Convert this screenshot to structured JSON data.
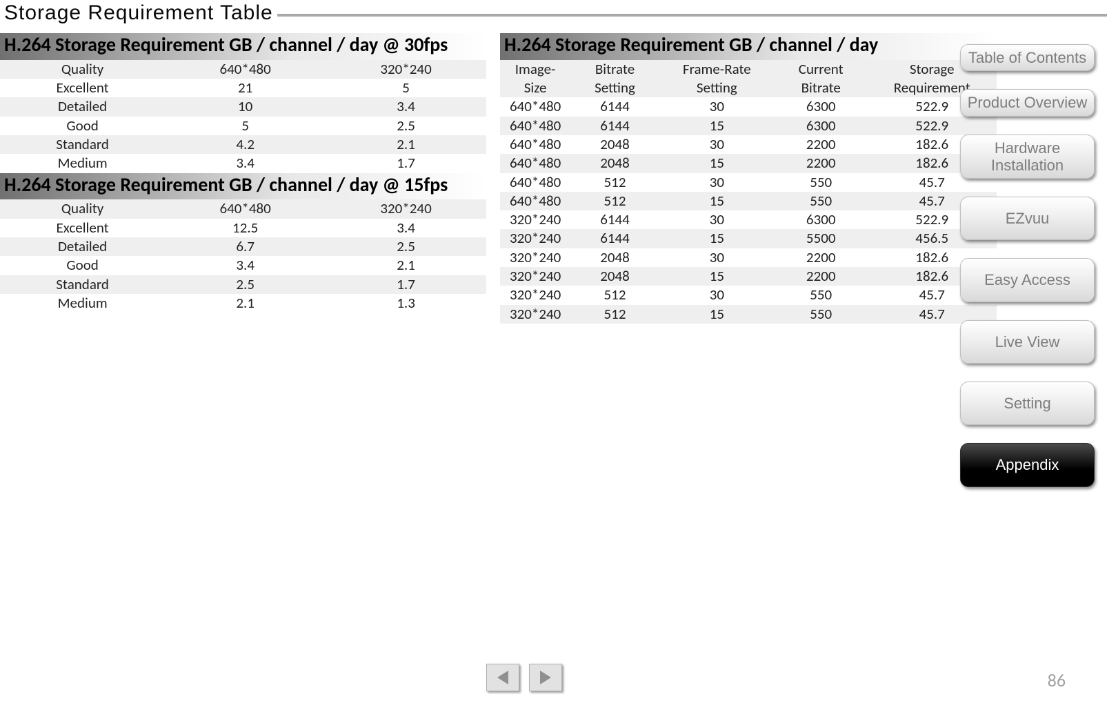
{
  "page_title": "Storage Requirement Table",
  "page_number": "86",
  "nav": [
    {
      "label": "Table of Contents",
      "active": false,
      "lines": 2
    },
    {
      "label": "Product Overview",
      "active": false,
      "lines": 2
    },
    {
      "label": "Hardware Installation",
      "active": false,
      "lines": 2
    },
    {
      "label": "EZvuu",
      "active": false,
      "lines": 1
    },
    {
      "label": "Easy Access",
      "active": false,
      "lines": 1
    },
    {
      "label": "Live View",
      "active": false,
      "lines": 1
    },
    {
      "label": "Setting",
      "active": false,
      "lines": 1
    },
    {
      "label": "Appendix",
      "active": true,
      "lines": 1
    }
  ],
  "table30": {
    "title": "H.264 Storage Requirement GB / channel / day @ 30fps",
    "header": [
      "Quality",
      "640*480",
      "320*240"
    ],
    "rows": [
      [
        "Excellent",
        "21",
        "5"
      ],
      [
        "Detailed",
        "10",
        "3.4"
      ],
      [
        "Good",
        "5",
        "2.5"
      ],
      [
        "Standard",
        "4.2",
        "2.1"
      ],
      [
        "Medium",
        "3.4",
        "1.7"
      ]
    ]
  },
  "table15": {
    "title": "H.264 Storage Requirement GB / channel / day @ 15fps",
    "header": [
      "Quality",
      "640*480",
      "320*240"
    ],
    "rows": [
      [
        "Excellent",
        "12.5",
        "3.4"
      ],
      [
        "Detailed",
        "6.7",
        "2.5"
      ],
      [
        "Good",
        "3.4",
        "2.1"
      ],
      [
        "Standard",
        "2.5",
        "1.7"
      ],
      [
        "Medium",
        "2.1",
        "1.3"
      ]
    ]
  },
  "tableDay": {
    "title": "H.264 Storage Requirement GB / channel / day",
    "header": [
      "Image-Size",
      "Bitrate Setting",
      "Frame-Rate Setting",
      "Current Bitrate",
      "Storage Requirement"
    ],
    "rows": [
      [
        "640*480",
        "6144",
        "30",
        "6300",
        "522.9"
      ],
      [
        "640*480",
        "6144",
        "15",
        "6300",
        "522.9"
      ],
      [
        "640*480",
        "2048",
        "30",
        "2200",
        "182.6"
      ],
      [
        "640*480",
        "2048",
        "15",
        "2200",
        "182.6"
      ],
      [
        "640*480",
        "512",
        "30",
        "550",
        "45.7"
      ],
      [
        "640*480",
        "512",
        "15",
        "550",
        "45.7"
      ],
      [
        "320*240",
        "6144",
        "30",
        "6300",
        "522.9"
      ],
      [
        "320*240",
        "6144",
        "15",
        "5500",
        "456.5"
      ],
      [
        "320*240",
        "2048",
        "30",
        "2200",
        "182.6"
      ],
      [
        "320*240",
        "2048",
        "15",
        "2200",
        "182.6"
      ],
      [
        "320*240",
        "512",
        "30",
        "550",
        "45.7"
      ],
      [
        "320*240",
        "512",
        "15",
        "550",
        "45.7"
      ]
    ]
  }
}
